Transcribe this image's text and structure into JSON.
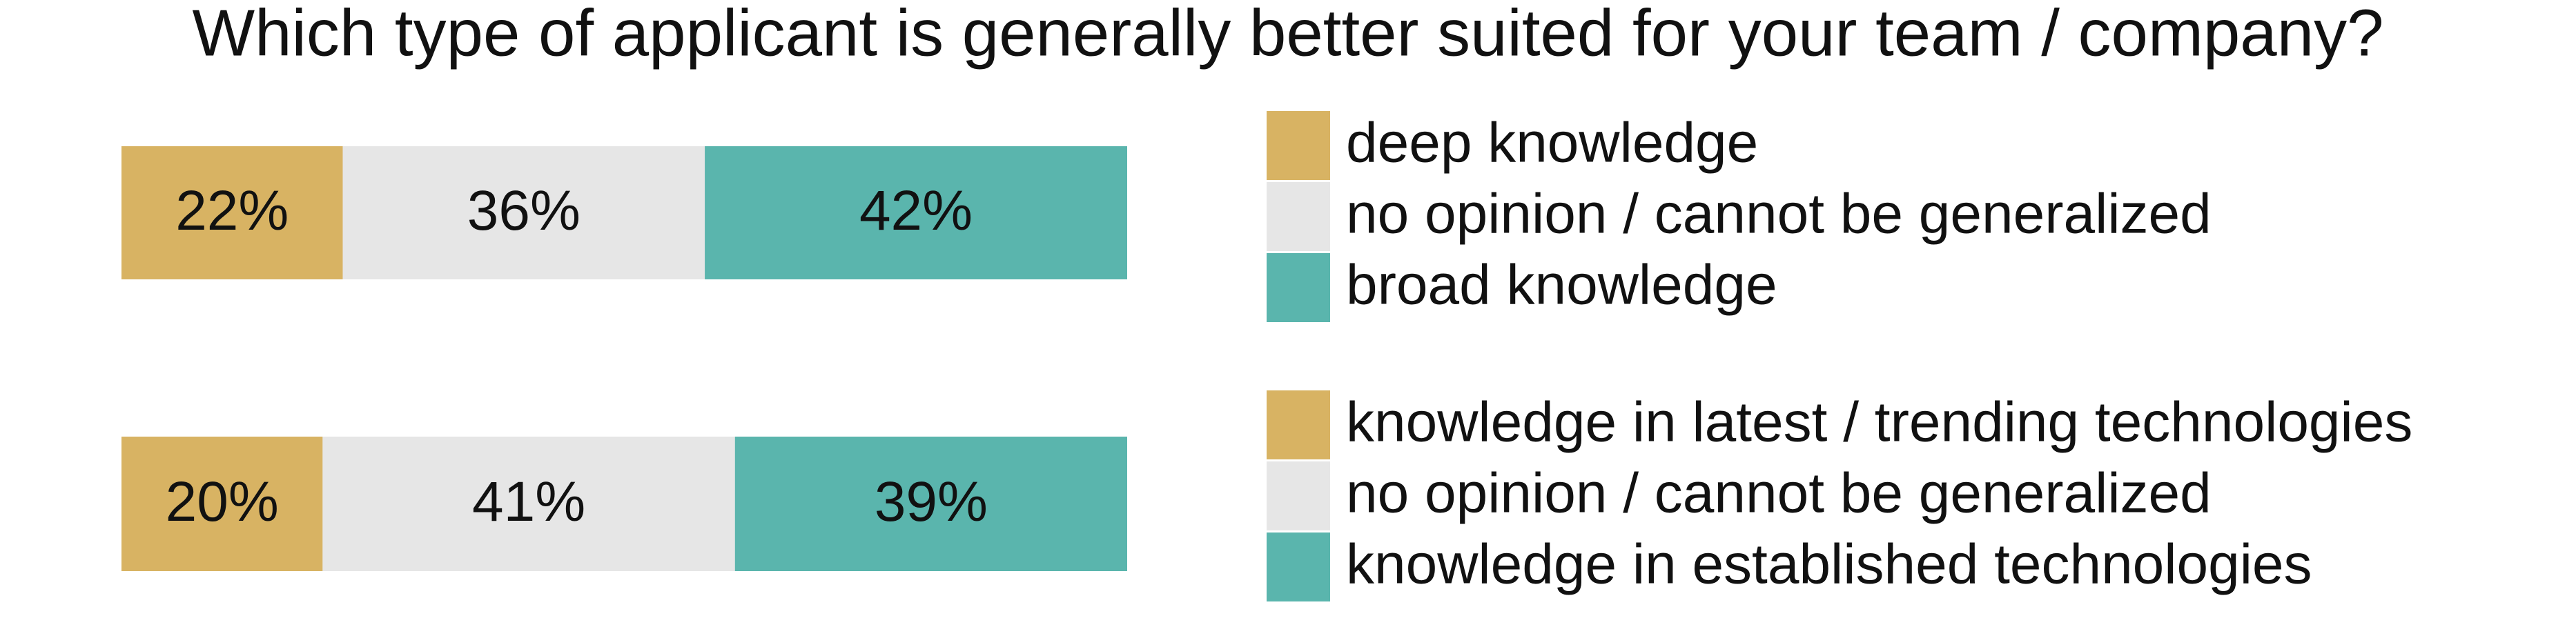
{
  "chart_data": [
    {
      "type": "bar",
      "stacked": true,
      "orientation": "horizontal",
      "title": "Which type of applicant is generally better suited for your team / company?",
      "series": [
        {
          "name": "deep knowledge",
          "color": "#d8b363",
          "values": [
            22
          ],
          "value_labels": [
            "22%"
          ]
        },
        {
          "name": "no opinion / cannot be generalized",
          "color": "#e6e6e6",
          "values": [
            36
          ],
          "value_labels": [
            "36%"
          ]
        },
        {
          "name": "broad knowledge",
          "color": "#5ab5ad",
          "values": [
            42
          ],
          "value_labels": [
            "42%"
          ]
        }
      ]
    },
    {
      "type": "bar",
      "stacked": true,
      "orientation": "horizontal",
      "series": [
        {
          "name": "knowledge in latest / trending technologies",
          "color": "#d8b363",
          "values": [
            20
          ],
          "value_labels": [
            "20%"
          ]
        },
        {
          "name": "no opinion / cannot be generalized",
          "color": "#e6e6e6",
          "values": [
            41
          ],
          "value_labels": [
            "41%"
          ]
        },
        {
          "name": "knowledge in established technologies",
          "color": "#5ab5ad",
          "values": [
            39
          ],
          "value_labels": [
            "39%"
          ]
        }
      ]
    }
  ]
}
